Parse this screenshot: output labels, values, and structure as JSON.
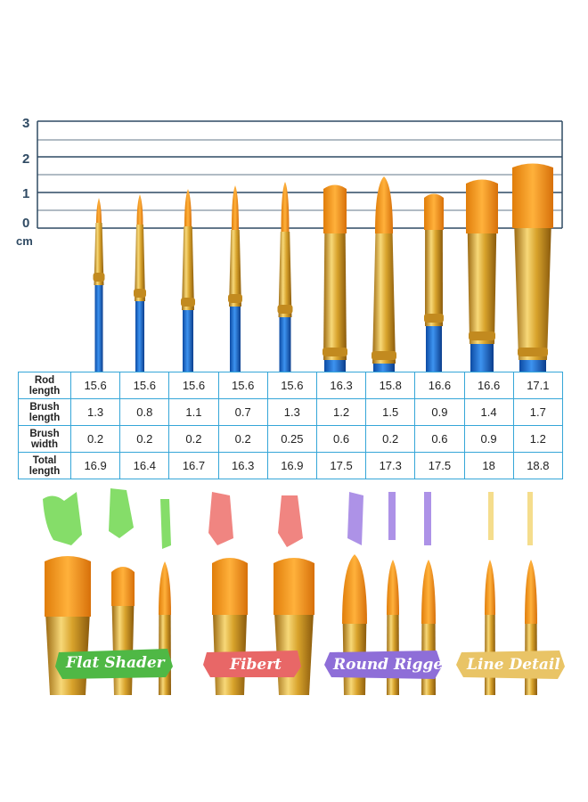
{
  "ruler": {
    "ticks": [
      "3",
      "2",
      "1",
      "0"
    ],
    "unit": "cm"
  },
  "table": {
    "rows": [
      {
        "label_line1": "Rod",
        "label_line2": "length",
        "values": [
          "15.6",
          "15.6",
          "15.6",
          "15.6",
          "15.6",
          "16.3",
          "15.8",
          "16.6",
          "16.6",
          "17.1"
        ]
      },
      {
        "label_line1": "Brush",
        "label_line2": "length",
        "values": [
          "1.3",
          "0.8",
          "1.1",
          "0.7",
          "1.3",
          "1.2",
          "1.5",
          "0.9",
          "1.4",
          "1.7"
        ]
      },
      {
        "label_line1": "Brush",
        "label_line2": "width",
        "values": [
          "0.2",
          "0.2",
          "0.2",
          "0.2",
          "0.25",
          "0.6",
          "0.2",
          "0.6",
          "0.9",
          "1.2"
        ]
      },
      {
        "label_line1": "Total",
        "label_line2": "length",
        "values": [
          "16.9",
          "16.4",
          "16.7",
          "16.3",
          "16.9",
          "17.5",
          "17.3",
          "17.5",
          "18",
          "18.8"
        ]
      }
    ]
  },
  "tags": {
    "flat_shader": "Flat Shader",
    "fibert": "Fibert",
    "round_rigger": "Round Rigger",
    "line_detail": "Line Detail"
  },
  "colors": {
    "ruler_line": "#2f4a63",
    "table_border": "#35a6d8",
    "bristle": "#f39b1d",
    "ferrule": "#d9a52e",
    "handle": "#1f6fd1",
    "green_paint": "#7fdc62",
    "pink_paint": "#f07f7b",
    "purple_paint": "#a98de6",
    "yellow_paint": "#f5dc86"
  },
  "icons": [
    "paintbrush-icon",
    "paint-stroke-icon",
    "ribbon-banner-icon"
  ]
}
